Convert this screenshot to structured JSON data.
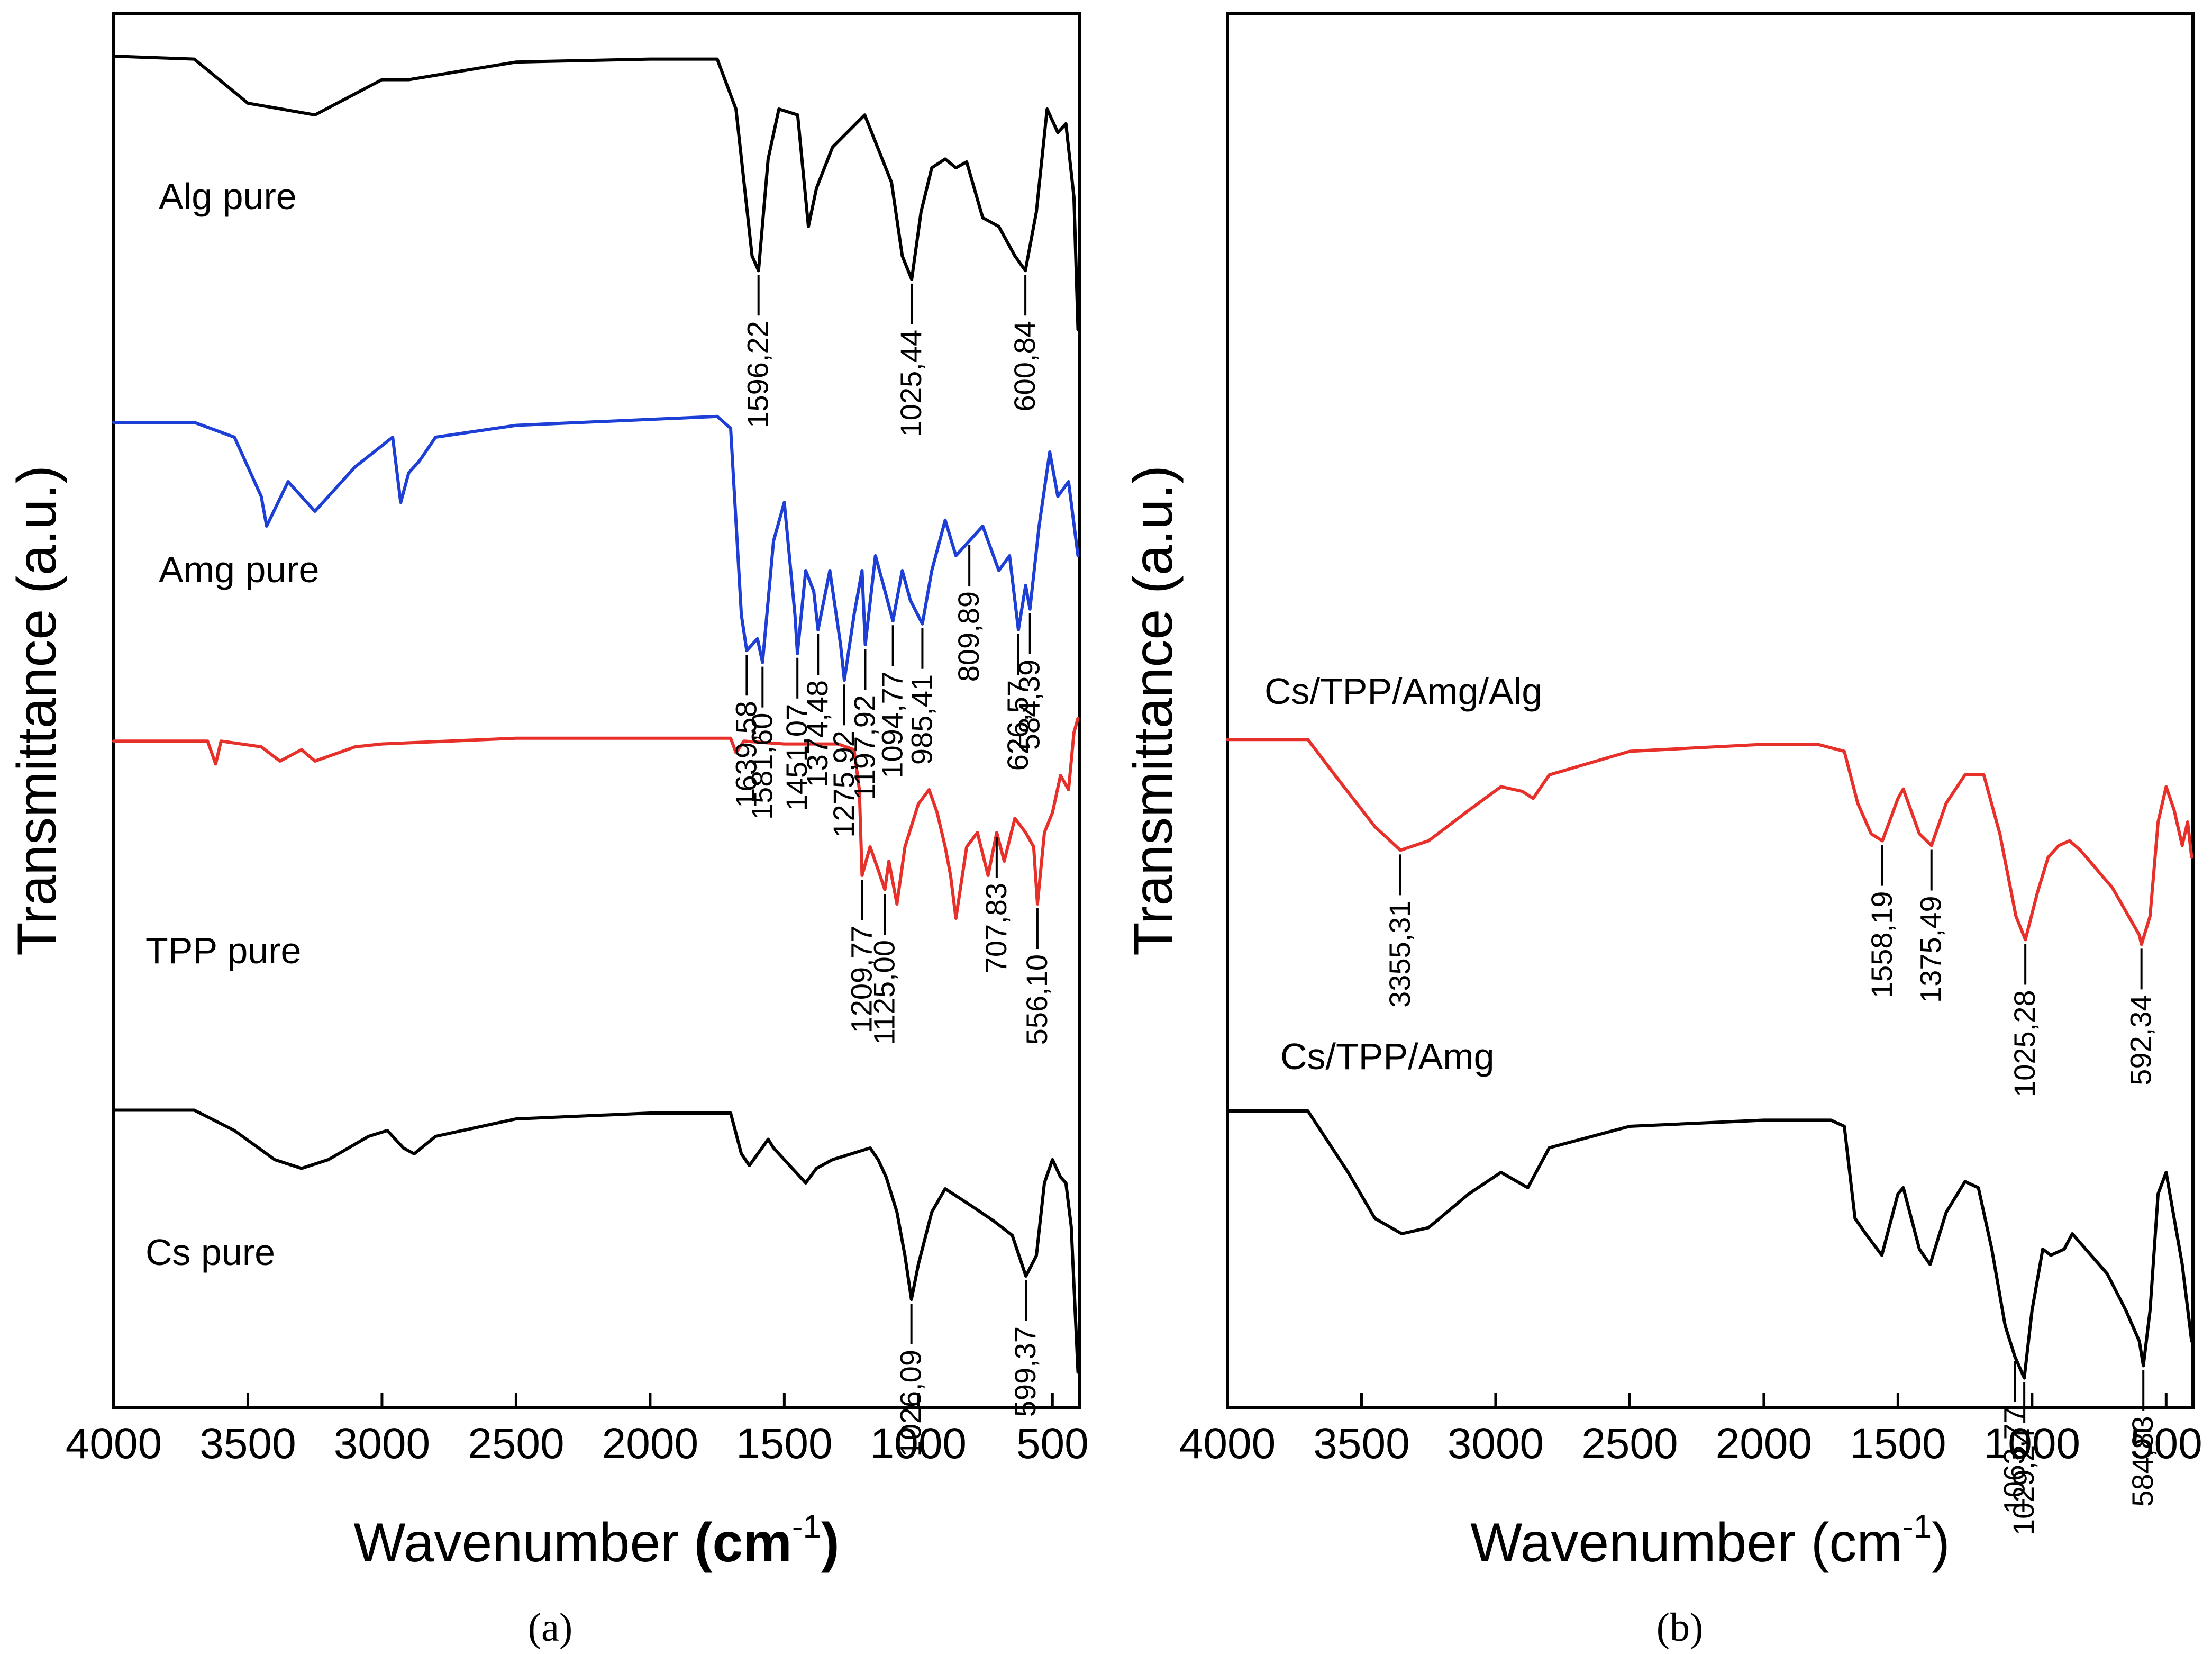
{
  "chart_data": [
    {
      "type": "line",
      "panel": "(a)",
      "xlabel": "Wavenumber",
      "xlabel_bold": "(cm",
      "xlabel_sup": "-1",
      "xlabel_close": ")",
      "ylabel": "Transmittance (a.u.)",
      "xlim": [
        4000,
        400
      ],
      "xticks": [
        "4000",
        "3500",
        "3000",
        "2500",
        "2000",
        "1500",
        "1000",
        "500"
      ],
      "series": [
        {
          "name": "Alg pure",
          "color": "#000000",
          "offset": 3.3,
          "x": [
            4000,
            3700,
            3500,
            3250,
            3000,
            2900,
            2500,
            2000,
            1750,
            1680,
            1620,
            1596,
            1560,
            1520,
            1450,
            1410,
            1380,
            1320,
            1200,
            1100,
            1060,
            1025,
            990,
            950,
            900,
            860,
            820,
            760,
            700,
            640,
            601,
            560,
            520,
            480,
            450,
            420,
            405
          ],
          "y": [
            0.98,
            0.97,
            0.82,
            0.78,
            0.9,
            0.9,
            0.96,
            0.97,
            0.97,
            0.8,
            0.3,
            0.25,
            0.63,
            0.8,
            0.78,
            0.4,
            0.53,
            0.67,
            0.78,
            0.55,
            0.3,
            0.22,
            0.45,
            0.6,
            0.63,
            0.6,
            0.62,
            0.43,
            0.4,
            0.3,
            0.25,
            0.45,
            0.8,
            0.72,
            0.75,
            0.5,
            0.05
          ]
        },
        {
          "name": "Amg pure",
          "color": "#1d3fd6",
          "offset": 2.2,
          "x": [
            4000,
            3700,
            3550,
            3450,
            3430,
            3350,
            3250,
            3100,
            2960,
            2930,
            2900,
            2860,
            2800,
            2500,
            2000,
            1750,
            1700,
            1660,
            1640,
            1600,
            1581,
            1540,
            1500,
            1460,
            1451,
            1420,
            1390,
            1374,
            1330,
            1290,
            1276,
            1240,
            1210,
            1198,
            1160,
            1130,
            1095,
            1060,
            1030,
            985,
            950,
            900,
            860,
            810,
            760,
            700,
            660,
            627,
            600,
            584,
            550,
            510,
            480,
            440,
            405
          ],
          "y": [
            0.95,
            0.95,
            0.9,
            0.7,
            0.6,
            0.75,
            0.65,
            0.8,
            0.9,
            0.68,
            0.78,
            0.82,
            0.9,
            0.94,
            0.96,
            0.97,
            0.93,
            0.3,
            0.18,
            0.22,
            0.14,
            0.55,
            0.68,
            0.3,
            0.17,
            0.45,
            0.38,
            0.25,
            0.45,
            0.2,
            0.08,
            0.3,
            0.45,
            0.2,
            0.5,
            0.4,
            0.28,
            0.45,
            0.35,
            0.27,
            0.45,
            0.62,
            0.5,
            0.55,
            0.6,
            0.45,
            0.5,
            0.25,
            0.4,
            0.32,
            0.6,
            0.85,
            0.7,
            0.75,
            0.5
          ]
        },
        {
          "name": "TPP pure",
          "color": "#e8302b",
          "offset": 1.2,
          "x": [
            4000,
            3650,
            3620,
            3600,
            3450,
            3380,
            3300,
            3250,
            3100,
            3000,
            2500,
            2000,
            1700,
            1680,
            1650,
            1500,
            1300,
            1240,
            1220,
            1210,
            1180,
            1150,
            1125,
            1110,
            1080,
            1050,
            1000,
            960,
            930,
            900,
            880,
            860,
            820,
            780,
            740,
            708,
            680,
            640,
            600,
            570,
            556,
            530,
            500,
            470,
            440,
            420,
            405
          ],
          "y": [
            0.87,
            0.87,
            0.79,
            0.87,
            0.85,
            0.8,
            0.84,
            0.8,
            0.85,
            0.86,
            0.88,
            0.88,
            0.88,
            0.83,
            0.87,
            0.86,
            0.86,
            0.84,
            0.7,
            0.4,
            0.5,
            0.42,
            0.35,
            0.45,
            0.3,
            0.5,
            0.65,
            0.7,
            0.62,
            0.5,
            0.4,
            0.25,
            0.5,
            0.55,
            0.4,
            0.55,
            0.45,
            0.6,
            0.55,
            0.5,
            0.3,
            0.55,
            0.62,
            0.75,
            0.7,
            0.9,
            0.95
          ]
        },
        {
          "name": "Cs pure",
          "color": "#000000",
          "offset": 0.0,
          "x": [
            4000,
            3700,
            3550,
            3400,
            3300,
            3200,
            3050,
            2980,
            2920,
            2880,
            2800,
            2500,
            2000,
            1700,
            1660,
            1630,
            1560,
            1540,
            1500,
            1420,
            1380,
            1320,
            1250,
            1180,
            1150,
            1120,
            1080,
            1050,
            1026,
            1000,
            950,
            900,
            850,
            800,
            720,
            650,
            599,
            560,
            530,
            500,
            470,
            450,
            430,
            405
          ],
          "y": [
            0.95,
            0.95,
            0.88,
            0.78,
            0.75,
            0.78,
            0.86,
            0.88,
            0.82,
            0.8,
            0.86,
            0.92,
            0.94,
            0.94,
            0.8,
            0.76,
            0.85,
            0.82,
            0.78,
            0.7,
            0.75,
            0.78,
            0.8,
            0.82,
            0.78,
            0.72,
            0.6,
            0.45,
            0.3,
            0.42,
            0.6,
            0.68,
            0.65,
            0.62,
            0.57,
            0.52,
            0.38,
            0.45,
            0.7,
            0.78,
            0.72,
            0.7,
            0.55,
            0.05
          ]
        }
      ],
      "annotations": [
        {
          "series": 0,
          "x": 1596,
          "label": "1596,22"
        },
        {
          "series": 0,
          "x": 1025,
          "label": "1025,44"
        },
        {
          "series": 0,
          "x": 601,
          "label": "600,84"
        },
        {
          "series": 1,
          "x": 1640,
          "label": "1639,58"
        },
        {
          "series": 1,
          "x": 1581,
          "label": "1581,60"
        },
        {
          "series": 1,
          "x": 1451,
          "label": "1451,07"
        },
        {
          "series": 1,
          "x": 1374,
          "label": "1374,48"
        },
        {
          "series": 1,
          "x": 1276,
          "label": "1275,92"
        },
        {
          "series": 1,
          "x": 1198,
          "label": "1197,92"
        },
        {
          "series": 1,
          "x": 1095,
          "label": "1094,77"
        },
        {
          "series": 1,
          "x": 985,
          "label": "985,41"
        },
        {
          "series": 1,
          "x": 810,
          "label": "809,89"
        },
        {
          "series": 1,
          "x": 627,
          "label": "626,57"
        },
        {
          "series": 1,
          "x": 584,
          "label": "584,39"
        },
        {
          "series": 2,
          "x": 1210,
          "label": "1209,77"
        },
        {
          "series": 2,
          "x": 1125,
          "label": "1125,00"
        },
        {
          "series": 2,
          "x": 708,
          "label": "707,83"
        },
        {
          "series": 2,
          "x": 556,
          "label": "556,10"
        },
        {
          "series": 3,
          "x": 1026,
          "label": "1026,09"
        },
        {
          "series": 3,
          "x": 599,
          "label": "599,37"
        }
      ]
    },
    {
      "type": "line",
      "panel": "(b)",
      "xlabel": "Wavenumber",
      "xlabel_bold": "",
      "xlabel_sup": "-1",
      "xlabel_close": ")",
      "xlabel_plain": "(cm",
      "ylabel": "Transmittance (a.u.)",
      "xlim": [
        4000,
        400
      ],
      "xticks": [
        "4000",
        "3500",
        "3000",
        "2500",
        "2000",
        "1500",
        "1000",
        "500"
      ],
      "series": [
        {
          "name": "Cs/TPP/Amg/Alg",
          "color": "#e8302b",
          "offset": 1.3,
          "x": [
            4000,
            3700,
            3600,
            3450,
            3355,
            3250,
            3100,
            2980,
            2900,
            2860,
            2800,
            2500,
            2000,
            1800,
            1700,
            1650,
            1600,
            1558,
            1500,
            1480,
            1420,
            1375,
            1320,
            1250,
            1180,
            1120,
            1060,
            1025,
            980,
            940,
            900,
            860,
            820,
            760,
            700,
            640,
            600,
            592,
            560,
            530,
            500,
            470,
            440,
            420,
            405
          ],
          "y": [
            0.95,
            0.95,
            0.8,
            0.58,
            0.48,
            0.52,
            0.65,
            0.75,
            0.73,
            0.7,
            0.8,
            0.9,
            0.93,
            0.93,
            0.9,
            0.68,
            0.55,
            0.52,
            0.7,
            0.74,
            0.55,
            0.5,
            0.68,
            0.8,
            0.8,
            0.55,
            0.2,
            0.1,
            0.3,
            0.45,
            0.5,
            0.52,
            0.48,
            0.4,
            0.32,
            0.2,
            0.12,
            0.08,
            0.2,
            0.6,
            0.75,
            0.65,
            0.5,
            0.6,
            0.45
          ]
        },
        {
          "name": "Cs/TPP/Amg",
          "color": "#000000",
          "offset": 0.0,
          "x": [
            4000,
            3700,
            3550,
            3450,
            3350,
            3250,
            3100,
            2980,
            2920,
            2880,
            2800,
            2500,
            2000,
            1750,
            1700,
            1660,
            1620,
            1560,
            1500,
            1480,
            1420,
            1380,
            1320,
            1250,
            1200,
            1150,
            1100,
            1064,
            1029,
            1000,
            960,
            930,
            880,
            850,
            800,
            720,
            650,
            600,
            585,
            560,
            530,
            500,
            470,
            440,
            405
          ],
          "y": [
            0.95,
            0.95,
            0.75,
            0.6,
            0.55,
            0.57,
            0.68,
            0.75,
            0.72,
            0.7,
            0.83,
            0.9,
            0.92,
            0.92,
            0.9,
            0.6,
            0.55,
            0.48,
            0.68,
            0.7,
            0.5,
            0.45,
            0.62,
            0.72,
            0.7,
            0.5,
            0.25,
            0.15,
            0.08,
            0.3,
            0.5,
            0.48,
            0.5,
            0.55,
            0.5,
            0.42,
            0.3,
            0.2,
            0.12,
            0.3,
            0.68,
            0.75,
            0.6,
            0.45,
            0.2
          ]
        }
      ],
      "annotations": [
        {
          "series": 0,
          "x": 3355,
          "label": "3355,31"
        },
        {
          "series": 0,
          "x": 1558,
          "label": "1558,19"
        },
        {
          "series": 0,
          "x": 1375,
          "label": "1375,49"
        },
        {
          "series": 0,
          "x": 1025,
          "label": "1025,28"
        },
        {
          "series": 0,
          "x": 592,
          "label": "592,34"
        },
        {
          "series": 1,
          "x": 1064,
          "label": "1063,77"
        },
        {
          "series": 1,
          "x": 1029,
          "label": "1029,24"
        },
        {
          "series": 1,
          "x": 585,
          "label": "584,83"
        }
      ]
    }
  ]
}
